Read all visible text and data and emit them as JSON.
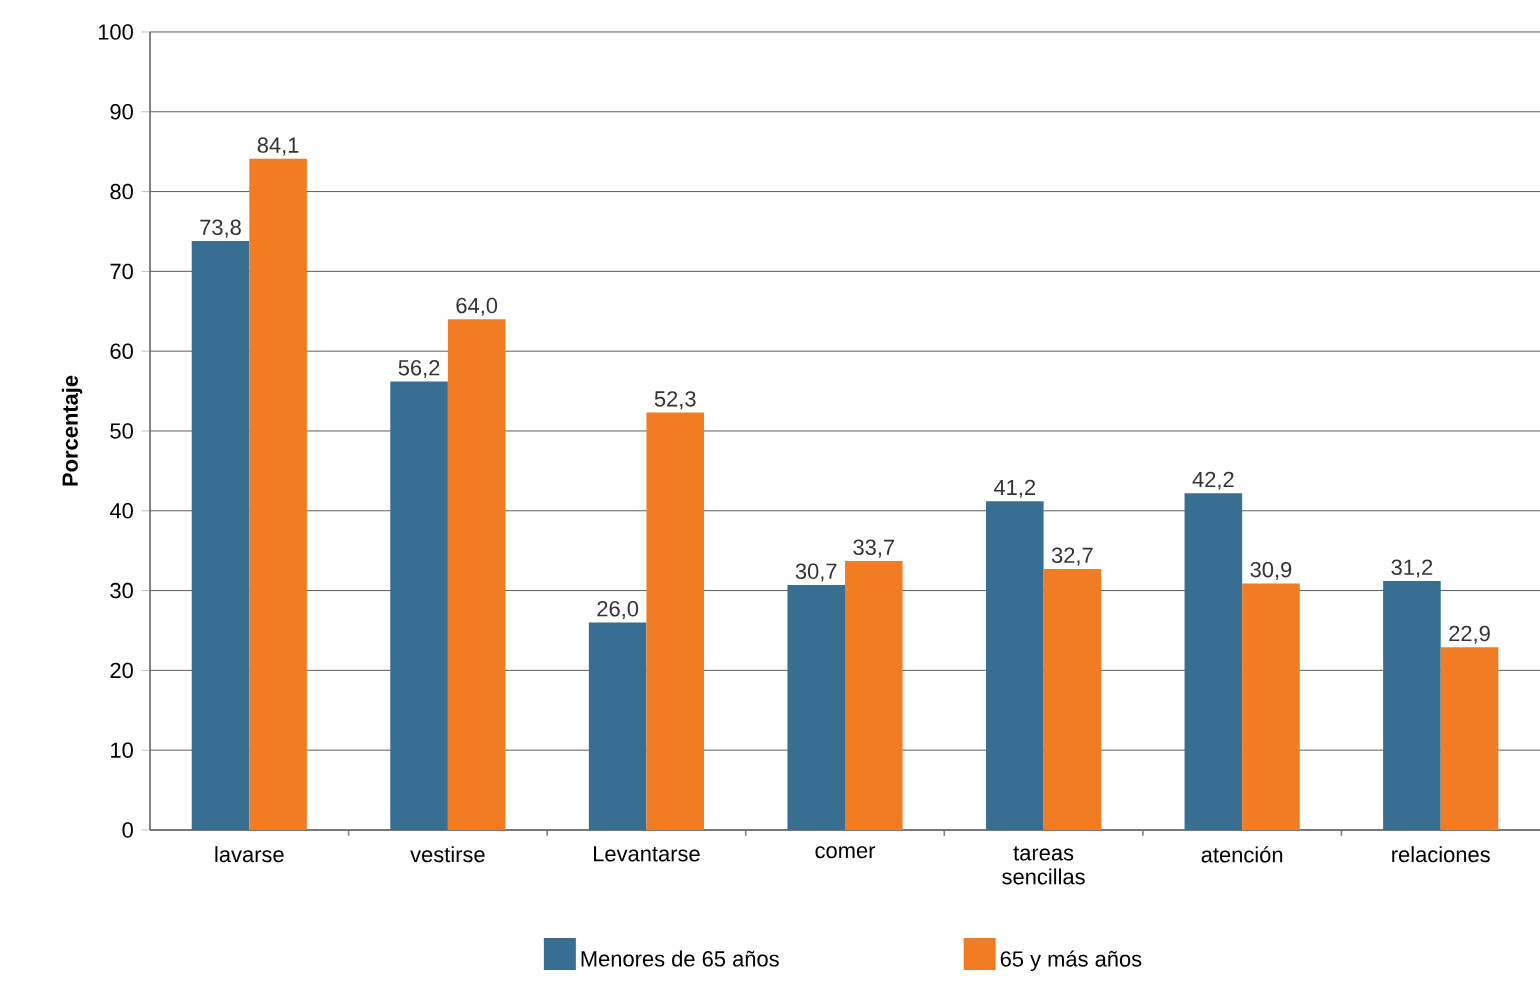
{
  "chart_data": {
    "type": "bar",
    "ylabel": "Porcentaje",
    "categories": [
      "lavarse",
      "vestirse",
      "Levantarse",
      "comer",
      "tareas sencillas",
      "atención",
      "relaciones"
    ],
    "series": [
      {
        "name": "Menores de 65 años",
        "color": "#376e92",
        "values": [
          73.8,
          56.2,
          26.0,
          30.7,
          41.2,
          42.2,
          31.2
        ],
        "value_labels": [
          "73,8",
          "56,2",
          "26,0",
          "30,7",
          "41,2",
          "42,2",
          "31,2"
        ]
      },
      {
        "name": "65 y más años",
        "color": "#f27c24",
        "values": [
          84.1,
          64.0,
          52.3,
          33.7,
          32.7,
          30.9,
          22.9
        ],
        "value_labels": [
          "84,1",
          "64,0",
          "52,3",
          "33,7",
          "32,7",
          "30,9",
          "22,9"
        ]
      }
    ],
    "ylim": [
      0,
      100
    ],
    "yticks": [
      0,
      10,
      20,
      30,
      40,
      50,
      60,
      70,
      80,
      90,
      100
    ],
    "grid": "y",
    "legend": "bottom"
  }
}
